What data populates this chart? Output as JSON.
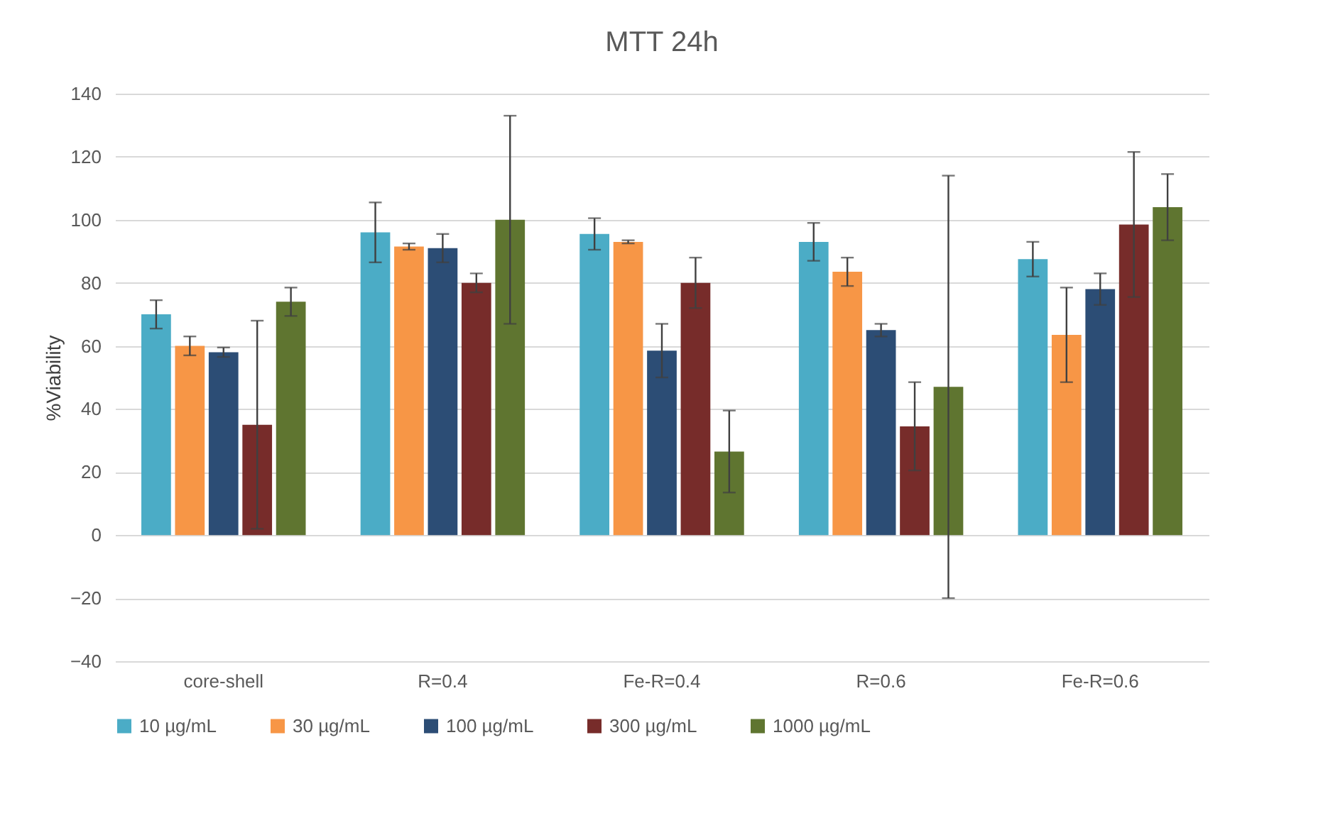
{
  "chart_data": {
    "type": "bar",
    "title": "MTT 24h",
    "ylabel": "%Viability",
    "categories": [
      "core-shell",
      "R=0.4",
      "Fe-R=0.4",
      "R=0.6",
      "Fe-R=0.6"
    ],
    "series": [
      {
        "name": "10 µg/mL",
        "color": "#4bacc6",
        "values": [
          70,
          96,
          95.5,
          93,
          87.5
        ],
        "errors": [
          4.5,
          9.5,
          5,
          6,
          5.5
        ]
      },
      {
        "name": "30 µg/mL",
        "color": "#f79646",
        "values": [
          60,
          91.5,
          93,
          83.5,
          63.5
        ],
        "errors": [
          3,
          1,
          0.5,
          4.5,
          15
        ]
      },
      {
        "name": "100 µg/mL",
        "color": "#2c4d75",
        "values": [
          58,
          91,
          58.5,
          65,
          78
        ],
        "errors": [
          1.5,
          4.5,
          8.5,
          2,
          5
        ]
      },
      {
        "name": "300 µg/mL",
        "color": "#772c2a",
        "values": [
          35,
          80,
          80,
          34.5,
          98.5
        ],
        "errors": [
          33,
          3,
          8,
          14,
          23
        ]
      },
      {
        "name": "1000 µg/mL",
        "color": "#5f7530",
        "values": [
          74,
          100,
          26.5,
          47,
          104
        ],
        "errors": [
          4.5,
          33,
          13,
          67,
          10.5
        ]
      }
    ],
    "ylim": [
      -40,
      140
    ],
    "yticks": [
      -40,
      -20,
      0,
      20,
      40,
      60,
      80,
      100,
      120,
      140
    ],
    "grid": "y",
    "legend": "bottom"
  }
}
